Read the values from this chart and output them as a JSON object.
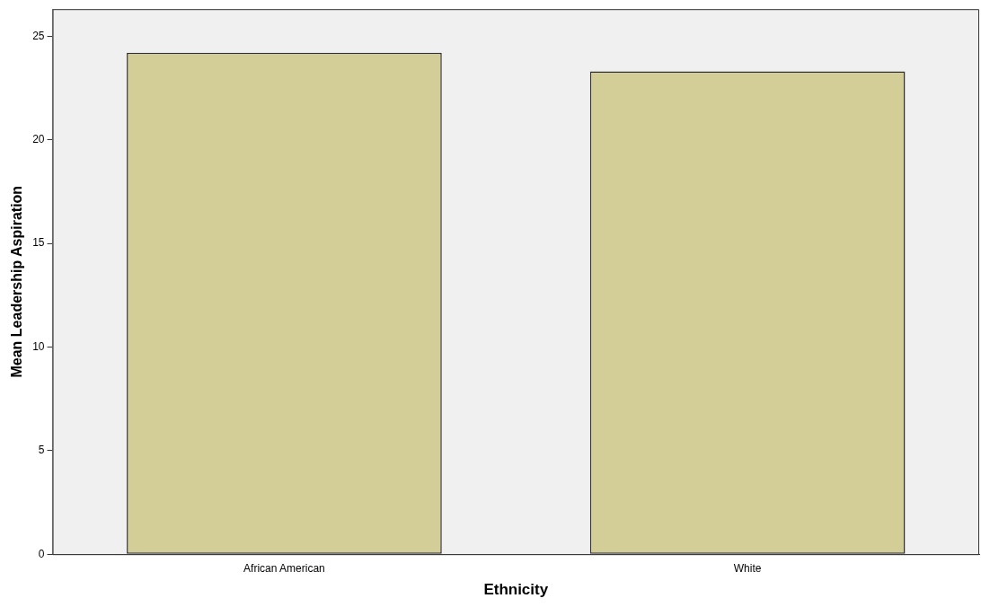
{
  "chart_data": {
    "type": "bar",
    "categories": [
      "African American",
      "White"
    ],
    "values": [
      24.2,
      23.3
    ],
    "color": "#d3ce97",
    "xlabel": "Ethnicity",
    "ylabel": "Mean Leadership Aspiration",
    "ylim": [
      0,
      26.3
    ],
    "yticks": [
      0,
      5,
      10,
      15,
      20,
      25
    ],
    "grid": false,
    "legend": false
  }
}
